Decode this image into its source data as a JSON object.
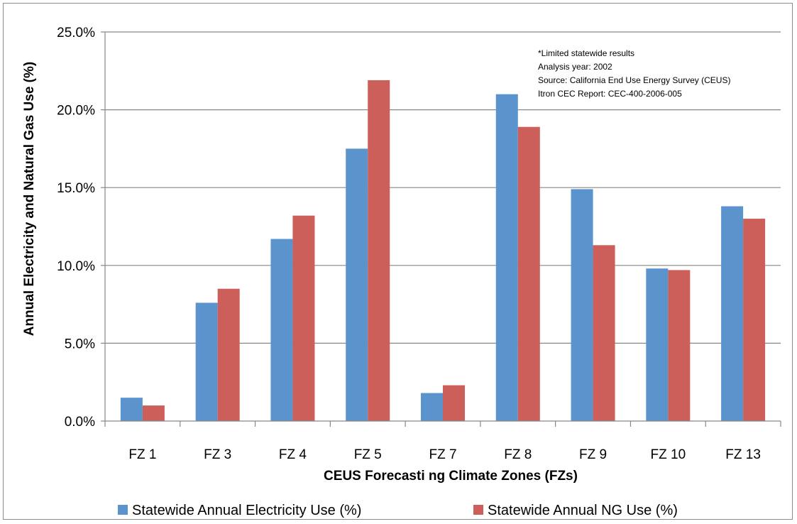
{
  "chart_data": {
    "type": "bar",
    "title": "",
    "xlabel": "CEUS Forecasti  ng Climate Zones (FZs)",
    "ylabel": "Annual Electricity and Natural Gas Use (%)",
    "ylim": [
      0,
      25
    ],
    "yticks": [
      0,
      5,
      10,
      15,
      20,
      25
    ],
    "ytick_labels": [
      "0.0%",
      "5.0%",
      "10.0%",
      "15.0%",
      "20.0%",
      "25.0%"
    ],
    "grid": true,
    "legend_position": "bottom",
    "categories": [
      "FZ 1",
      "FZ 3",
      "FZ 4",
      "FZ 5",
      "FZ 7",
      "FZ 8",
      "FZ 9",
      "FZ 10",
      "FZ 13"
    ],
    "series": [
      {
        "name": "Statewide Annual Electricity Use (%)",
        "color": "#5b93cd",
        "values": [
          1.5,
          7.6,
          11.7,
          17.5,
          1.8,
          21.0,
          14.9,
          9.8,
          13.8
        ]
      },
      {
        "name": "Statewide Annual NG Use (%)",
        "color": "#cd5f5a",
        "values": [
          1.0,
          8.5,
          13.2,
          21.9,
          2.3,
          18.9,
          11.3,
          9.7,
          13.0
        ]
      }
    ],
    "annotations": [
      "*Limited statewide  results",
      "Analysis year: 2002",
      "Source: California End Use Energy Survey (CEUS)",
      "Itron CEC Report: CEC-400-2006-005"
    ]
  }
}
